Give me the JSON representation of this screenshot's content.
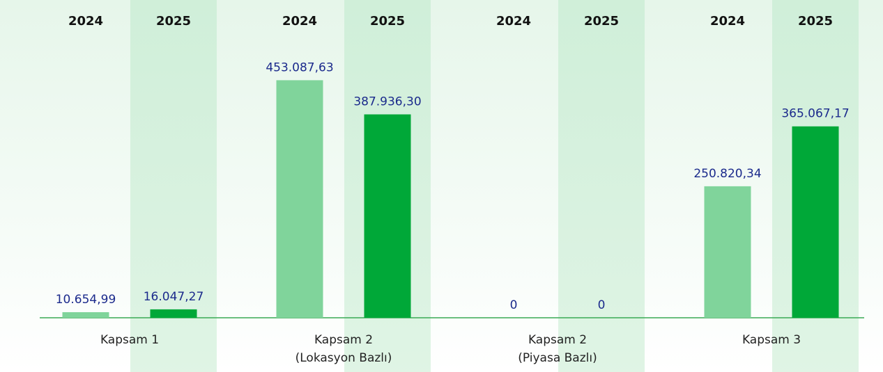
{
  "chart_data": {
    "type": "bar",
    "categories": [
      "Kapsam 1",
      "Kapsam 2\n(Lokasyon Bazlı)",
      "Kapsam 2\n(Piyasa Bazlı)",
      "Kapsam 3"
    ],
    "series": [
      {
        "name": "2024",
        "color": "#80d49b",
        "values": [
          10654.99,
          453087.63,
          0,
          250820.34
        ],
        "value_labels": [
          "10.654,99",
          "453.087,63",
          "0",
          "250.820,34"
        ]
      },
      {
        "name": "2025",
        "color": "#00a838",
        "values": [
          16047.27,
          387936.3,
          0,
          365067.17
        ],
        "value_labels": [
          "16.047,27",
          "387.936,30",
          "0",
          "365.067,17"
        ]
      }
    ],
    "ylim": [
      0,
      500000
    ]
  }
}
